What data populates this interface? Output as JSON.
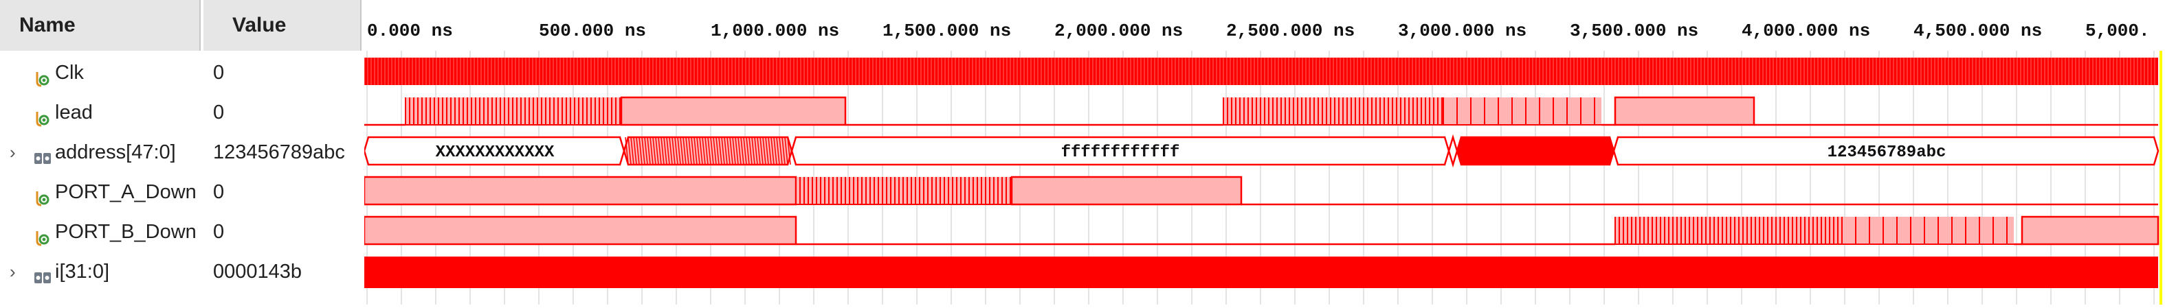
{
  "header": {
    "name_col": "Name",
    "value_col": "Value"
  },
  "signals": [
    {
      "name": "Clk",
      "value": "0",
      "icon": "bit-signal-icon",
      "expandable": false
    },
    {
      "name": "lead",
      "value": "0",
      "icon": "bit-signal-icon",
      "expandable": false
    },
    {
      "name": "address[47:0]",
      "value": "123456789abc",
      "icon": "bus-signal-icon",
      "expandable": true
    },
    {
      "name": "PORT_A_Down",
      "value": "0",
      "icon": "bit-signal-icon",
      "expandable": false
    },
    {
      "name": "PORT_B_Down",
      "value": "0",
      "icon": "bit-signal-icon",
      "expandable": false
    },
    {
      "name": "i[31:0]",
      "value": "0000143b",
      "icon": "bus-signal-icon",
      "expandable": true
    }
  ],
  "timeline": {
    "ticks": [
      "0.000 ns",
      "500.000 ns",
      "1,000.000 ns",
      "1,500.000 ns",
      "2,000.000 ns",
      "2,500.000 ns",
      "3,000.000 ns",
      "3,500.000 ns",
      "4,000.000 ns",
      "4,500.000 ns",
      "5,000."
    ]
  },
  "bus_labels": {
    "address_seg1": "XXXXXXXXXXXX",
    "address_seg3": "ffffffffffff",
    "address_seg5": "123456789abc"
  },
  "colors": {
    "wave": "#ff0000",
    "wave_fill": "#ffb3b3",
    "grid": "#dcdcdc",
    "header_bg": "#e6e6e6",
    "cursor": "#ffff00"
  }
}
